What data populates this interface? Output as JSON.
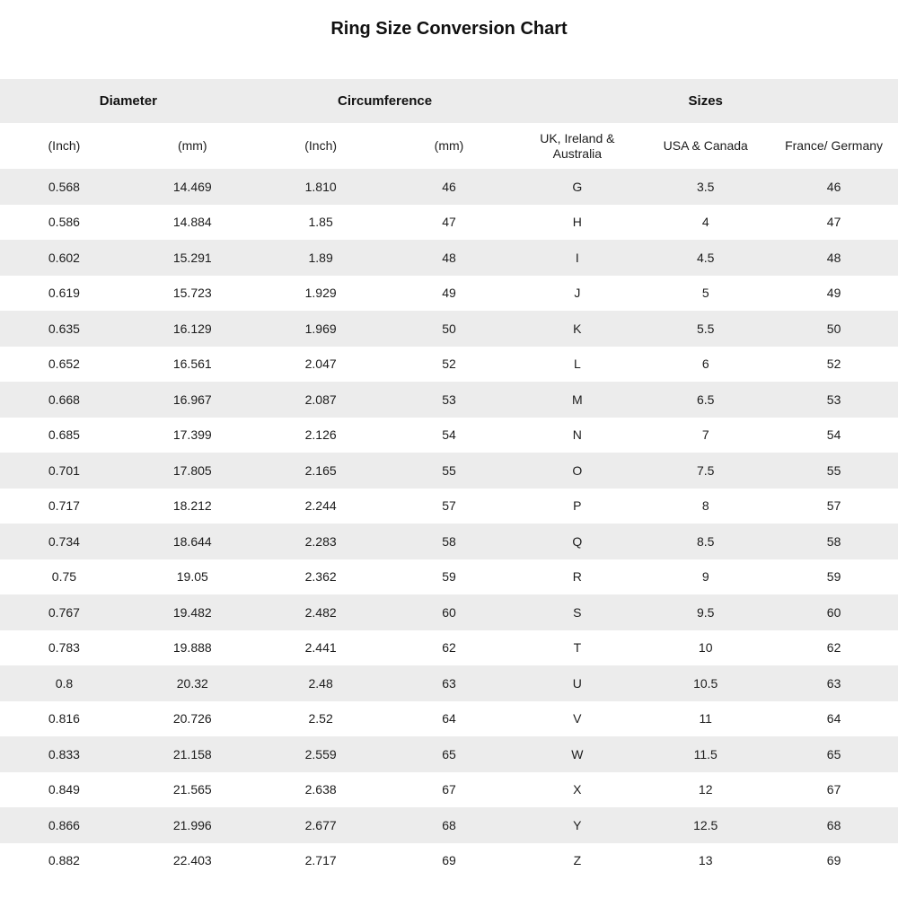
{
  "title": "Ring Size Conversion Chart",
  "chart_data": {
    "type": "table",
    "title": "Ring Size Conversion Chart",
    "column_groups": [
      {
        "label": "Diameter",
        "span": 2
      },
      {
        "label": "Circumference",
        "span": 2
      },
      {
        "label": "Sizes",
        "span": 3
      }
    ],
    "columns": [
      "(Inch)",
      "(mm)",
      "(Inch)",
      "(mm)",
      "UK, Ireland & Australia",
      "USA & Canada",
      "France/ Germany"
    ],
    "rows": [
      [
        "0.568",
        "14.469",
        "1.810",
        "46",
        "G",
        "3.5",
        "46"
      ],
      [
        "0.586",
        "14.884",
        "1.85",
        "47",
        "H",
        "4",
        "47"
      ],
      [
        "0.602",
        "15.291",
        "1.89",
        "48",
        "I",
        "4.5",
        "48"
      ],
      [
        "0.619",
        "15.723",
        "1.929",
        "49",
        "J",
        "5",
        "49"
      ],
      [
        "0.635",
        "16.129",
        "1.969",
        "50",
        "K",
        "5.5",
        "50"
      ],
      [
        "0.652",
        "16.561",
        "2.047",
        "52",
        "L",
        "6",
        "52"
      ],
      [
        "0.668",
        "16.967",
        "2.087",
        "53",
        "M",
        "6.5",
        "53"
      ],
      [
        "0.685",
        "17.399",
        "2.126",
        "54",
        "N",
        "7",
        "54"
      ],
      [
        "0.701",
        "17.805",
        "2.165",
        "55",
        "O",
        "7.5",
        "55"
      ],
      [
        "0.717",
        "18.212",
        "2.244",
        "57",
        "P",
        "8",
        "57"
      ],
      [
        "0.734",
        "18.644",
        "2.283",
        "58",
        "Q",
        "8.5",
        "58"
      ],
      [
        "0.75",
        "19.05",
        "2.362",
        "59",
        "R",
        "9",
        "59"
      ],
      [
        "0.767",
        "19.482",
        "2.482",
        "60",
        "S",
        "9.5",
        "60"
      ],
      [
        "0.783",
        "19.888",
        "2.441",
        "62",
        "T",
        "10",
        "62"
      ],
      [
        "0.8",
        "20.32",
        "2.48",
        "63",
        "U",
        "10.5",
        "63"
      ],
      [
        "0.816",
        "20.726",
        "2.52",
        "64",
        "V",
        "11",
        "64"
      ],
      [
        "0.833",
        "21.158",
        "2.559",
        "65",
        "W",
        "11.5",
        "65"
      ],
      [
        "0.849",
        "21.565",
        "2.638",
        "67",
        "X",
        "12",
        "67"
      ],
      [
        "0.866",
        "21.996",
        "2.677",
        "68",
        "Y",
        "12.5",
        "68"
      ],
      [
        "0.882",
        "22.403",
        "2.717",
        "69",
        "Z",
        "13",
        "69"
      ]
    ]
  },
  "colors": {
    "stripe": "#ececec",
    "text": "#1c1c1c",
    "background": "#ffffff"
  }
}
